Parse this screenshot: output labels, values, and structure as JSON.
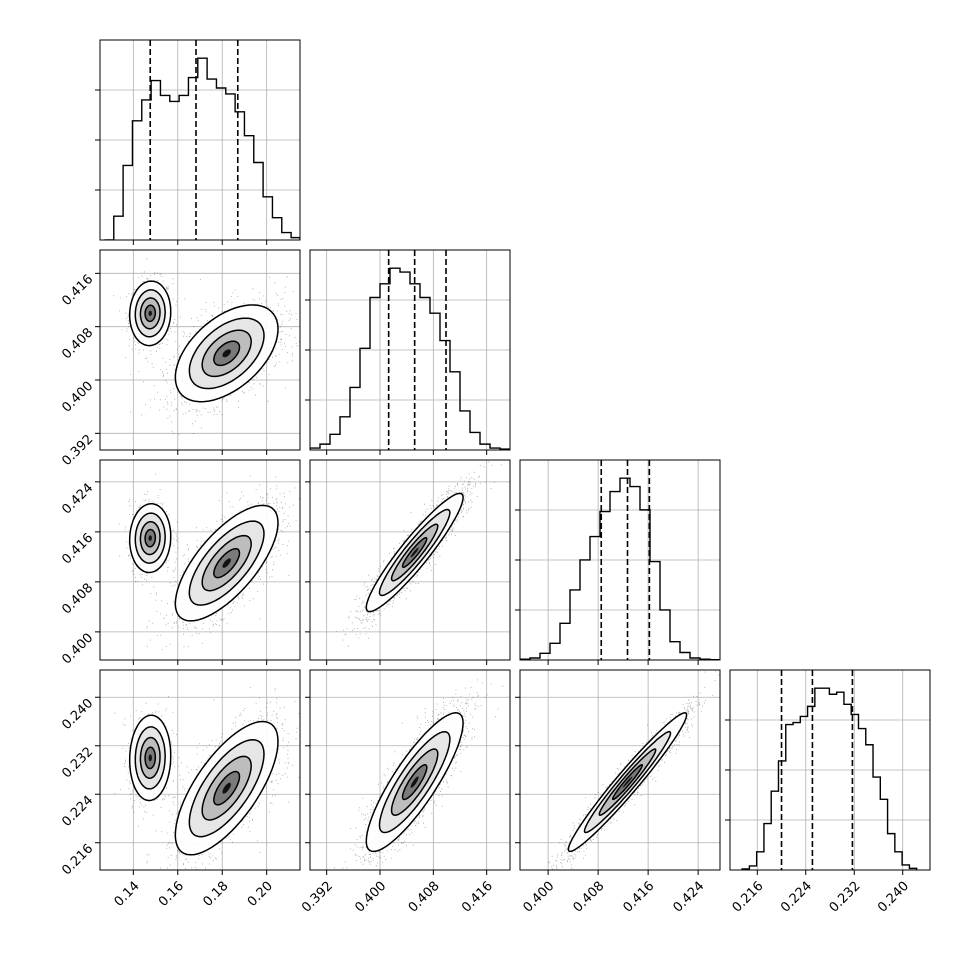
{
  "chart_data": {
    "type": "corner",
    "title": "",
    "grid": true,
    "parameters": [
      {
        "range": [
          0.125,
          0.215
        ],
        "ticks": [
          "0.14",
          "0.16",
          "0.18",
          "0.20"
        ],
        "tick_values": [
          0.14,
          0.16,
          0.18,
          0.2
        ]
      },
      {
        "range": [
          0.3895,
          0.4195
        ],
        "ticks": [
          "0.392",
          "0.400",
          "0.408",
          "0.416"
        ],
        "tick_values": [
          0.392,
          0.4,
          0.408,
          0.416
        ]
      },
      {
        "range": [
          0.3955,
          0.4275
        ],
        "ticks": [
          "0.400",
          "0.408",
          "0.416",
          "0.424"
        ],
        "tick_values": [
          0.4,
          0.408,
          0.416,
          0.424
        ]
      },
      {
        "range": [
          0.2115,
          0.2445
        ],
        "ticks": [
          "0.216",
          "0.224",
          "0.232",
          "0.240"
        ],
        "tick_values": [
          0.216,
          0.224,
          0.232,
          0.24
        ]
      }
    ],
    "histograms": [
      {
        "bins": [
          0.127,
          0.1312,
          0.1354,
          0.1396,
          0.1438,
          0.148,
          0.1522,
          0.1564,
          0.1606,
          0.1648,
          0.169,
          0.1732,
          0.1774,
          0.1816,
          0.1858,
          0.19,
          0.1942,
          0.1984,
          0.2026,
          0.2068,
          0.211,
          0.215
        ],
        "counts": [
          0,
          80,
          250,
          400,
          470,
          535,
          485,
          465,
          485,
          545,
          610,
          540,
          510,
          490,
          430,
          350,
          260,
          145,
          75,
          25,
          8
        ],
        "quantiles": [
          0.1476,
          0.1682,
          0.187
        ]
      },
      {
        "bins": [
          0.3895,
          0.391,
          0.3925,
          0.394,
          0.3955,
          0.397,
          0.3985,
          0.4,
          0.4015,
          0.403,
          0.4045,
          0.406,
          0.4075,
          0.409,
          0.4105,
          0.412,
          0.4135,
          0.415,
          0.4165,
          0.418,
          0.4195
        ],
        "counts": [
          10,
          30,
          80,
          170,
          320,
          520,
          780,
          850,
          930,
          910,
          850,
          780,
          700,
          560,
          400,
          200,
          90,
          30,
          10,
          5
        ],
        "quantiles": [
          0.4013,
          0.4052,
          0.4099
        ]
      },
      {
        "bins": [
          0.3955,
          0.3971,
          0.3987,
          0.4003,
          0.4019,
          0.4035,
          0.4051,
          0.4067,
          0.4083,
          0.4099,
          0.4115,
          0.4131,
          0.4147,
          0.4163,
          0.4179,
          0.4195,
          0.4211,
          0.4227,
          0.4243,
          0.4259,
          0.4275
        ],
        "counts": [
          5,
          12,
          40,
          100,
          220,
          420,
          600,
          740,
          890,
          1010,
          1090,
          1040,
          900,
          590,
          300,
          110,
          45,
          12,
          5,
          2
        ],
        "quantiles": [
          0.4085,
          0.4127,
          0.4162
        ]
      },
      {
        "bins": [
          0.2135,
          0.2147,
          0.2159,
          0.2171,
          0.2183,
          0.2195,
          0.2207,
          0.2219,
          0.2231,
          0.2243,
          0.2255,
          0.2267,
          0.2279,
          0.2291,
          0.2303,
          0.2315,
          0.2327,
          0.2339,
          0.2351,
          0.2363,
          0.2375,
          0.2387,
          0.2399,
          0.2411,
          0.2423
        ],
        "counts": [
          5,
          20,
          90,
          230,
          390,
          540,
          720,
          730,
          760,
          810,
          900,
          900,
          870,
          880,
          820,
          770,
          700,
          620,
          460,
          350,
          180,
          90,
          25,
          8
        ],
        "quantiles": [
          0.22,
          0.2251,
          0.2317
        ]
      }
    ],
    "scatter_pairs": [
      {
        "x": 0,
        "y": 1,
        "blobs": [
          {
            "cx": 0.1476,
            "cy": 0.41,
            "sx": 0.0042,
            "sy": 0.0022,
            "rho": 0.05,
            "w": 0.3
          },
          {
            "cx": 0.182,
            "cy": 0.404,
            "sx": 0.0105,
            "sy": 0.0033,
            "rho": 0.5,
            "w": 0.7
          }
        ]
      },
      {
        "x": 0,
        "y": 2,
        "blobs": [
          {
            "cx": 0.1476,
            "cy": 0.415,
            "sx": 0.0042,
            "sy": 0.0025,
            "rho": 0.05,
            "w": 0.3
          },
          {
            "cx": 0.182,
            "cy": 0.411,
            "sx": 0.0105,
            "sy": 0.0042,
            "rho": 0.7,
            "w": 0.7
          }
        ]
      },
      {
        "x": 0,
        "y": 3,
        "blobs": [
          {
            "cx": 0.1476,
            "cy": 0.23,
            "sx": 0.0042,
            "sy": 0.0032,
            "rho": 0.05,
            "w": 0.3
          },
          {
            "cx": 0.182,
            "cy": 0.225,
            "sx": 0.0105,
            "sy": 0.005,
            "rho": 0.7,
            "w": 0.7
          }
        ]
      },
      {
        "x": 1,
        "y": 2,
        "blobs": [
          {
            "cx": 0.4052,
            "cy": 0.4127,
            "sx": 0.0033,
            "sy": 0.0043,
            "rho": 0.93,
            "w": 1.0
          }
        ]
      },
      {
        "x": 1,
        "y": 3,
        "blobs": [
          {
            "cx": 0.4052,
            "cy": 0.226,
            "sx": 0.0033,
            "sy": 0.0052,
            "rho": 0.85,
            "w": 1.0
          }
        ]
      },
      {
        "x": 2,
        "y": 3,
        "blobs": [
          {
            "cx": 0.4127,
            "cy": 0.226,
            "sx": 0.0043,
            "sy": 0.0052,
            "rho": 0.97,
            "w": 1.0
          }
        ]
      }
    ]
  }
}
